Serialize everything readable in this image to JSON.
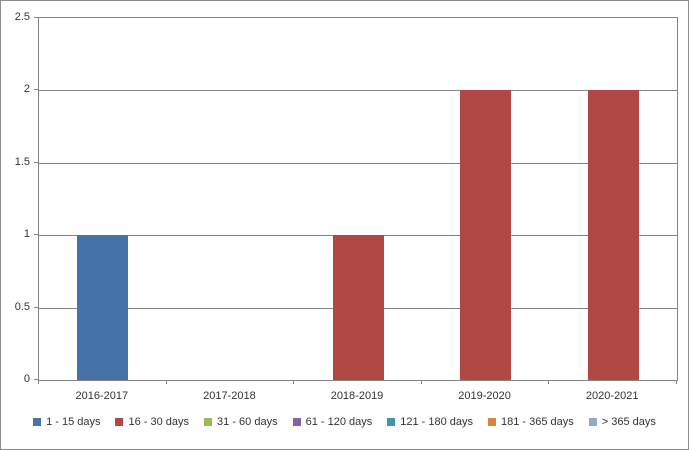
{
  "chart_data": {
    "type": "bar",
    "title": "",
    "categories": [
      "2016-2017",
      "2017-2018",
      "2018-2019",
      "2019-2020",
      "2020-2021"
    ],
    "series": [
      {
        "name": "1 - 15 days",
        "color": "#4572A8",
        "values": [
          1,
          0,
          0,
          0,
          0
        ]
      },
      {
        "name": "16 - 30 days",
        "color": "#B04846",
        "values": [
          0,
          0,
          1,
          2,
          2
        ]
      },
      {
        "name": "31 - 60 days",
        "color": "#9ABB59",
        "values": [
          0,
          0,
          0,
          0,
          0
        ]
      },
      {
        "name": "61 - 120 days",
        "color": "#7E64A0",
        "values": [
          0,
          0,
          0,
          0,
          0
        ]
      },
      {
        "name": "121 - 180 days",
        "color": "#3D96AE",
        "values": [
          0,
          0,
          0,
          0,
          0
        ]
      },
      {
        "name": "181 - 365 days",
        "color": "#DB843D",
        "values": [
          0,
          0,
          0,
          0,
          0
        ]
      },
      {
        "name": "> 365 days",
        "color": "#92A8CD",
        "values": [
          0,
          0,
          0,
          0,
          0
        ]
      }
    ],
    "xlabel": "",
    "ylabel": "",
    "ylim": [
      0,
      2.5
    ],
    "ytick_step": 0.5,
    "ytick_labels": [
      "0",
      "0.5",
      "1",
      "1.5",
      "2",
      "2.5"
    ],
    "grid": true,
    "legend_position": "bottom"
  }
}
